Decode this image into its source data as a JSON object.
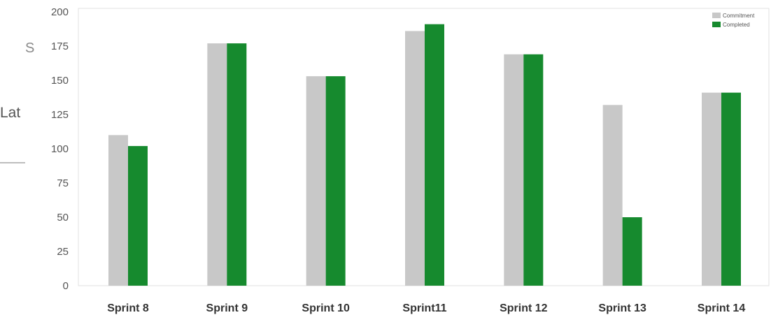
{
  "background_fragments": {
    "glyph_1": "S",
    "glyph_2": "Lat"
  },
  "chart_data": {
    "type": "bar",
    "categories": [
      "Sprint 8",
      "Sprint 9",
      "Sprint 10",
      "Sprint11",
      "Sprint 12",
      "Sprint 13",
      "Sprint 14"
    ],
    "series": [
      {
        "name": "Commitment",
        "color": "#c8c8c8",
        "values": [
          110,
          177,
          153,
          186,
          169,
          132,
          141
        ]
      },
      {
        "name": "Completed",
        "color": "#168a2e",
        "values": [
          102,
          177,
          153,
          191,
          169,
          50,
          141
        ]
      }
    ],
    "yticks": [
      0,
      25,
      50,
      75,
      100,
      125,
      150,
      175,
      200
    ],
    "ylim": [
      0,
      200
    ],
    "title": "",
    "xlabel": "",
    "ylabel": "",
    "grid": false,
    "legend_position": "top-right"
  }
}
